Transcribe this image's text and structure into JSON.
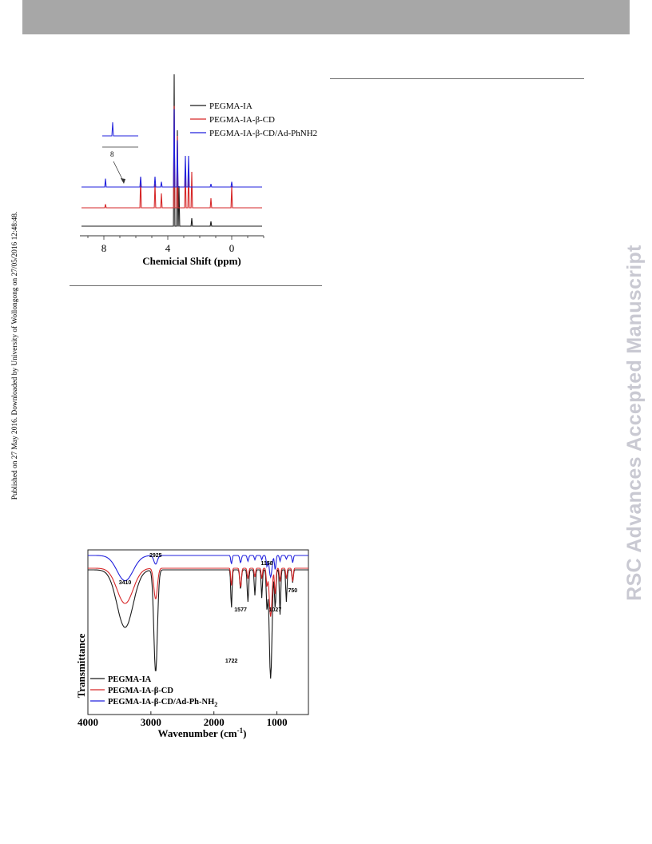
{
  "header": {},
  "sidebar_meta": "Published on 27 May 2016. Downloaded by University of Wollongong on 27/05/2016 12:48:48.",
  "watermark": "RSC Advances Accepted Manuscript",
  "figure_nmr": {
    "chart_data": {
      "type": "line",
      "xlabel": "Chemicial Shift (ppm)",
      "xlim": [
        9.5,
        -2
      ],
      "x_reversed": true,
      "x_ticks": [
        "8",
        "4",
        "0"
      ],
      "inset_label": "8",
      "series": [
        {
          "name": "PEGMA-IA",
          "color": "#1a1a1a",
          "peaks": [
            {
              "ppm": 3.6,
              "height": 0.95
            },
            {
              "ppm": 3.4,
              "height": 0.6
            },
            {
              "ppm": 3.3,
              "height": 0.25
            },
            {
              "ppm": 2.5,
              "height": 0.05
            },
            {
              "ppm": 1.3,
              "height": 0.03
            }
          ]
        },
        {
          "name": "PEGMA-IA-β-CD",
          "color": "#d62728",
          "peaks": [
            {
              "ppm": 7.9,
              "height": 0.03
            },
            {
              "ppm": 5.7,
              "height": 0.25
            },
            {
              "ppm": 4.8,
              "height": 0.2
            },
            {
              "ppm": 4.4,
              "height": 0.12
            },
            {
              "ppm": 3.6,
              "height": 0.85
            },
            {
              "ppm": 3.4,
              "height": 0.6
            },
            {
              "ppm": 2.9,
              "height": 0.32
            },
            {
              "ppm": 2.7,
              "height": 0.32
            },
            {
              "ppm": 2.5,
              "height": 0.3
            },
            {
              "ppm": 1.3,
              "height": 0.08
            },
            {
              "ppm": 0.0,
              "height": 0.18
            }
          ]
        },
        {
          "name": "PEGMA-IA-β-CD/Ad-PhNH2",
          "color": "#2222dd",
          "peaks": [
            {
              "ppm": 7.9,
              "height": 0.08
            },
            {
              "ppm": 5.7,
              "height": 0.1
            },
            {
              "ppm": 4.8,
              "height": 0.1
            },
            {
              "ppm": 4.4,
              "height": 0.05
            },
            {
              "ppm": 3.6,
              "height": 0.75
            },
            {
              "ppm": 3.4,
              "height": 0.45
            },
            {
              "ppm": 2.9,
              "height": 0.3
            },
            {
              "ppm": 2.7,
              "height": 0.3
            },
            {
              "ppm": 1.3,
              "height": 0.03
            },
            {
              "ppm": 0.0,
              "height": 0.05
            }
          ]
        }
      ]
    }
  },
  "figure_ftir": {
    "chart_data": {
      "type": "line",
      "xlabel": "Wavenumber (cm",
      "xlabel_sup": "-1",
      "xlabel_end": ")",
      "ylabel": "Transmittance",
      "xlim": [
        4000,
        500
      ],
      "x_reversed": true,
      "x_ticks": [
        4000,
        3000,
        2000,
        1000
      ],
      "annotations": [
        {
          "text": "3410",
          "x": 3410
        },
        {
          "text": "2925",
          "x": 2925
        },
        {
          "text": "1158",
          "x": 1158
        },
        {
          "text": "1577",
          "x": 1577
        },
        {
          "text": "1027",
          "x": 1027
        },
        {
          "text": "750",
          "x": 750
        },
        {
          "text": "1722",
          "x": 1722
        }
      ],
      "series": [
        {
          "name": "PEGMA-IA",
          "color": "#1a1a1a"
        },
        {
          "name": "PEGMA-IA-β-CD",
          "color": "#d62728"
        },
        {
          "name": "PEGMA-IA-β-CD/Ad-Ph-NH",
          "sub": "2",
          "color": "#2222dd"
        }
      ]
    }
  }
}
